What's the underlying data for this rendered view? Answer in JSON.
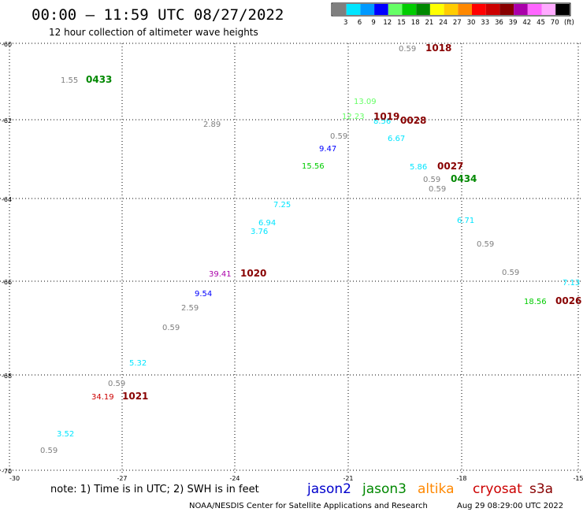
{
  "header": {
    "title": "00:00 — 11:59 UTC 08/27/2022",
    "subtitle": "12 hour collection of altimeter wave heights"
  },
  "legend": {
    "unit": "(ft)",
    "bins": [
      {
        "label": "3",
        "color": "#7f7f7f"
      },
      {
        "label": "6",
        "color": "#00e5ff"
      },
      {
        "label": "9",
        "color": "#0099ff"
      },
      {
        "label": "12",
        "color": "#0000ff"
      },
      {
        "label": "15",
        "color": "#66ff66"
      },
      {
        "label": "18",
        "color": "#00cc00"
      },
      {
        "label": "21",
        "color": "#008800"
      },
      {
        "label": "24",
        "color": "#ffff00"
      },
      {
        "label": "27",
        "color": "#ffcc00"
      },
      {
        "label": "30",
        "color": "#ff8800"
      },
      {
        "label": "33",
        "color": "#ff0000"
      },
      {
        "label": "36",
        "color": "#cc0000"
      },
      {
        "label": "39",
        "color": "#880000"
      },
      {
        "label": "42",
        "color": "#aa00aa"
      },
      {
        "label": "45",
        "color": "#ff66ff"
      },
      {
        "label": "70",
        "color": "#ffaaff"
      },
      {
        "label": "",
        "color": "#000000"
      }
    ]
  },
  "axes": {
    "lat_labels": [
      "-60",
      "-62",
      "-64",
      "-66",
      "-68",
      "-70"
    ],
    "lon_labels": [
      "-30",
      "-27",
      "-24",
      "-21",
      "-18",
      "-15"
    ],
    "lat_range": [
      -60,
      -70
    ],
    "lon_range": [
      -30,
      -15
    ]
  },
  "wave_heights": [
    {
      "text": "0.59",
      "color": "#7f7f7f"
    },
    {
      "text": "1.55",
      "color": "#7f7f7f"
    },
    {
      "text": "13.09",
      "color": "#66ff66"
    },
    {
      "text": "12.23",
      "color": "#66ff66"
    },
    {
      "text": "8.56",
      "color": "#00e5ff"
    },
    {
      "text": "2.89",
      "color": "#7f7f7f"
    },
    {
      "text": "0.59",
      "color": "#7f7f7f"
    },
    {
      "text": "6.67",
      "color": "#00e5ff"
    },
    {
      "text": "9.47",
      "color": "#0000ff"
    },
    {
      "text": "15.56",
      "color": "#00cc00"
    },
    {
      "text": "5.86",
      "color": "#00e5ff"
    },
    {
      "text": "0.59",
      "color": "#7f7f7f"
    },
    {
      "text": "0.59",
      "color": "#7f7f7f"
    },
    {
      "text": "7.25",
      "color": "#00e5ff"
    },
    {
      "text": "6.71",
      "color": "#00e5ff"
    },
    {
      "text": "6.94",
      "color": "#00e5ff"
    },
    {
      "text": "3.76",
      "color": "#00e5ff"
    },
    {
      "text": "0.59",
      "color": "#7f7f7f"
    },
    {
      "text": "39.41",
      "color": "#aa00aa"
    },
    {
      "text": "0.59",
      "color": "#7f7f7f"
    },
    {
      "text": "9.54",
      "color": "#0000ff"
    },
    {
      "text": "7.13",
      "color": "#00e5ff"
    },
    {
      "text": "18.56",
      "color": "#00cc00"
    },
    {
      "text": "2.59",
      "color": "#7f7f7f"
    },
    {
      "text": "0.59",
      "color": "#7f7f7f"
    },
    {
      "text": "5.32",
      "color": "#00e5ff"
    },
    {
      "text": "0.59",
      "color": "#7f7f7f"
    },
    {
      "text": "34.19",
      "color": "#cc0000"
    },
    {
      "text": "3.52",
      "color": "#00e5ff"
    },
    {
      "text": "0.59",
      "color": "#7f7f7f"
    }
  ],
  "pass_times": [
    {
      "text": "1018",
      "color": "#880000"
    },
    {
      "text": "0433",
      "color": "#008800"
    },
    {
      "text": "1019",
      "color": "#880000"
    },
    {
      "text": "0028",
      "color": "#880000"
    },
    {
      "text": "0027",
      "color": "#880000"
    },
    {
      "text": "0434",
      "color": "#008800"
    },
    {
      "text": "1020",
      "color": "#880000"
    },
    {
      "text": "0026",
      "color": "#880000"
    },
    {
      "text": "1021",
      "color": "#880000"
    }
  ],
  "footer": {
    "note": "note: 1) Time is in UTC; 2) SWH is in feet",
    "satellites": [
      {
        "text": "jason2",
        "color": "#0000cc"
      },
      {
        "text": "jason3",
        "color": "#008800"
      },
      {
        "text": "altika",
        "color": "#ff8800"
      },
      {
        "text": "cryosat",
        "color": "#cc0000"
      },
      {
        "text": "s3a",
        "color": "#880000"
      }
    ],
    "credit": "NOAA/NESDIS Center for Satellite Applications and Research",
    "timestamp": "Aug 29 08:29:00 UTC 2022"
  }
}
